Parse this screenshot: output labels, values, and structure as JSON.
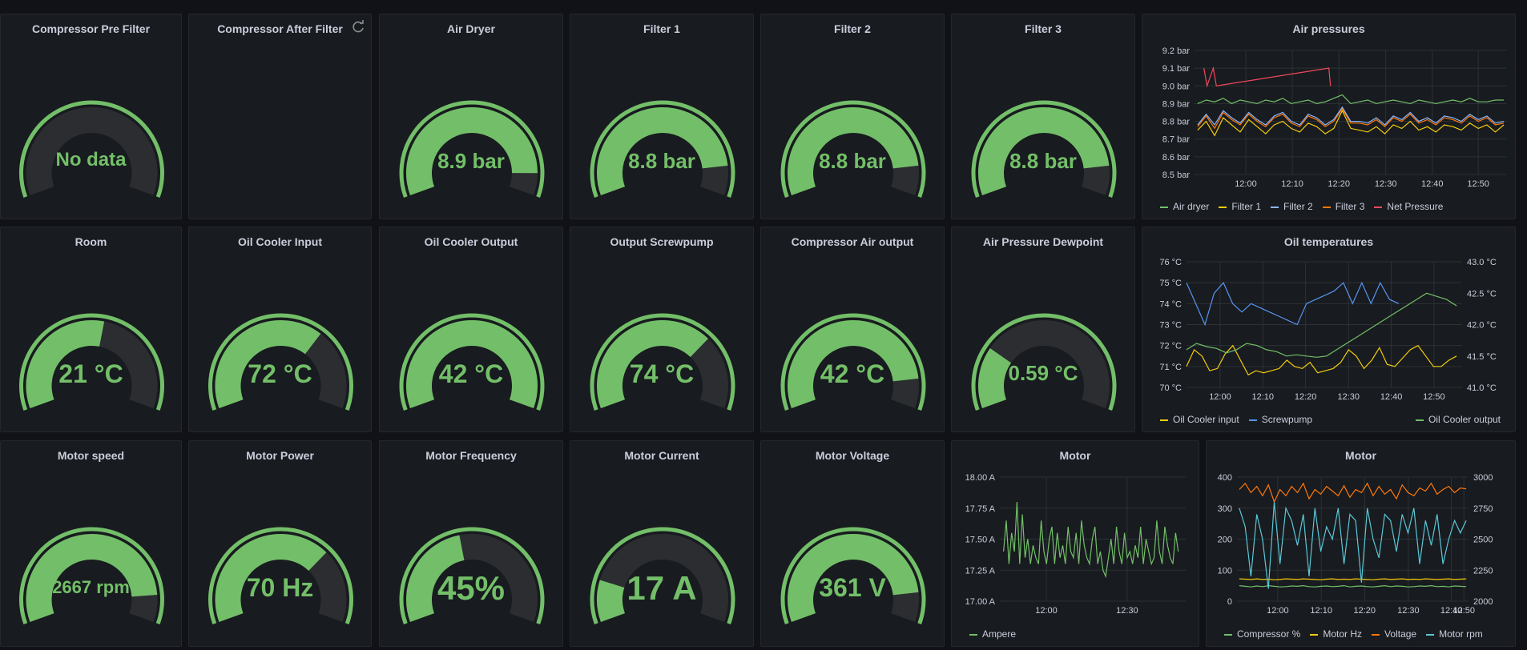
{
  "colors": {
    "accent": "#73bf69",
    "track": "#2b2d31",
    "grid": "#2c3235",
    "text": "#ccccdc",
    "bg": "#181b1f"
  },
  "gauges": [
    {
      "title": "Compressor Pre Filter",
      "display": "No data",
      "fraction": 0
    },
    {
      "title": "Compressor After Filter",
      "display": "",
      "fraction": null,
      "refresh_icon": "refresh-icon"
    },
    {
      "title": "Air Dryer",
      "display": "8.9 bar",
      "fraction": 0.91
    },
    {
      "title": "Filter 1",
      "display": "8.8 bar",
      "fraction": 0.88
    },
    {
      "title": "Filter 2",
      "display": "8.8 bar",
      "fraction": 0.88
    },
    {
      "title": "Filter 3",
      "display": "8.8 bar",
      "fraction": 0.88
    },
    {
      "title": "Room",
      "display": "21 °C",
      "fraction": 0.55
    },
    {
      "title": "Oil Cooler Input",
      "display": "72 °C",
      "fraction": 0.67
    },
    {
      "title": "Oil Cooler Output",
      "display": "42 °C",
      "fraction": 1.0
    },
    {
      "title": "Output Screwpump",
      "display": "74 °C",
      "fraction": 0.7
    },
    {
      "title": "Compressor Air output",
      "display": "42 °C",
      "fraction": 0.88
    },
    {
      "title": "Air Pressure Dewpoint",
      "display": "0.59 °C",
      "fraction": 0.25
    },
    {
      "title": "Motor speed",
      "display": "2667 rpm",
      "fraction": 0.89
    },
    {
      "title": "Motor Power",
      "display": "70 Hz",
      "fraction": 0.7
    },
    {
      "title": "Motor Frequency",
      "display": "45%",
      "fraction": 0.45
    },
    {
      "title": "Motor Current",
      "display": "17 A",
      "fraction": 0.17
    },
    {
      "title": "Motor Voltage",
      "display": "361 V",
      "fraction": 0.88
    }
  ],
  "charts": {
    "air": {
      "title": "Air pressures",
      "legend": [
        {
          "name": "Air dryer",
          "color": "#73bf69"
        },
        {
          "name": "Filter 1",
          "color": "#f2cc0c"
        },
        {
          "name": "Filter 2",
          "color": "#8ab8ff"
        },
        {
          "name": "Filter 3",
          "color": "#ff780a"
        },
        {
          "name": "Net Pressure",
          "color": "#f2495c"
        }
      ]
    },
    "oil": {
      "title": "Oil temperatures",
      "legend_left": [
        {
          "name": "Oil Cooler input",
          "color": "#f2cc0c"
        },
        {
          "name": "Screwpump",
          "color": "#5794f2"
        }
      ],
      "legend_right": [
        {
          "name": "Oil Cooler output",
          "color": "#73bf69"
        }
      ]
    },
    "motor1": {
      "title": "Motor",
      "legend": [
        {
          "name": "Ampere",
          "color": "#73bf69"
        }
      ]
    },
    "motor2": {
      "title": "Motor",
      "legend": [
        {
          "name": "Compressor %",
          "color": "#73bf69"
        },
        {
          "name": "Motor Hz",
          "color": "#f2cc0c"
        },
        {
          "name": "Voltage",
          "color": "#ff780a"
        },
        {
          "name": "Motor rpm",
          "color": "#5ac8d8"
        }
      ]
    }
  },
  "chart_data": [
    {
      "type": "line",
      "title": "Air pressures",
      "x_ticks": [
        "12:00",
        "12:10",
        "12:20",
        "12:30",
        "12:40",
        "12:50"
      ],
      "y_ticks": [
        "8.5 bar",
        "8.6 bar",
        "8.7 bar",
        "8.8 bar",
        "8.9 bar",
        "9.0 bar",
        "9.1 bar",
        "9.2 bar"
      ],
      "ylim": [
        8.5,
        9.2
      ],
      "grid": true,
      "legend_position": "bottom",
      "series": [
        {
          "name": "Air dryer",
          "color": "#73bf69",
          "values": [
            8.9,
            8.92,
            8.91,
            8.93,
            8.9,
            8.92,
            8.91,
            8.9,
            8.92,
            8.91,
            8.93,
            8.9,
            8.91,
            8.92,
            8.9,
            8.91,
            8.93,
            8.95,
            8.9,
            8.91,
            8.92,
            8.9,
            8.91,
            8.92,
            8.91,
            8.9,
            8.92,
            8.91,
            8.9,
            8.91,
            8.92,
            8.91,
            8.93,
            8.91,
            8.91,
            8.92,
            8.92
          ]
        },
        {
          "name": "Filter 1",
          "color": "#f2cc0c",
          "values": [
            8.75,
            8.8,
            8.72,
            8.82,
            8.78,
            8.74,
            8.81,
            8.77,
            8.73,
            8.78,
            8.8,
            8.76,
            8.74,
            8.79,
            8.77,
            8.73,
            8.76,
            8.86,
            8.76,
            8.75,
            8.74,
            8.77,
            8.73,
            8.78,
            8.76,
            8.8,
            8.75,
            8.77,
            8.74,
            8.78,
            8.77,
            8.75,
            8.79,
            8.76,
            8.78,
            8.74,
            8.78
          ]
        },
        {
          "name": "Filter 2",
          "color": "#8ab8ff",
          "values": [
            8.78,
            8.84,
            8.78,
            8.86,
            8.82,
            8.79,
            8.85,
            8.81,
            8.78,
            8.83,
            8.85,
            8.8,
            8.78,
            8.84,
            8.82,
            8.78,
            8.81,
            8.88,
            8.8,
            8.8,
            8.79,
            8.82,
            8.78,
            8.83,
            8.81,
            8.85,
            8.8,
            8.82,
            8.79,
            8.83,
            8.82,
            8.8,
            8.84,
            8.81,
            8.83,
            8.79,
            8.8
          ]
        },
        {
          "name": "Filter 3",
          "color": "#ff780a",
          "values": [
            8.77,
            8.83,
            8.76,
            8.85,
            8.81,
            8.78,
            8.84,
            8.8,
            8.77,
            8.82,
            8.84,
            8.79,
            8.77,
            8.83,
            8.81,
            8.77,
            8.8,
            8.87,
            8.79,
            8.79,
            8.78,
            8.81,
            8.77,
            8.82,
            8.8,
            8.84,
            8.79,
            8.81,
            8.78,
            8.82,
            8.81,
            8.79,
            8.83,
            8.8,
            8.82,
            8.78,
            8.79
          ]
        },
        {
          "name": "Net Pressure",
          "color": "#f2495c",
          "x": [
            "11:56",
            "11:57",
            "11:58",
            "11:59",
            "12:19",
            "12:19"
          ],
          "values": [
            9.1,
            9.0,
            9.1,
            9.0,
            9.1,
            9.0
          ]
        }
      ]
    },
    {
      "type": "line",
      "title": "Oil temperatures",
      "x_ticks": [
        "12:00",
        "12:10",
        "12:20",
        "12:30",
        "12:40",
        "12:50"
      ],
      "y_ticks_left": [
        "70 °C",
        "71 °C",
        "72 °C",
        "73 °C",
        "74 °C",
        "75 °C",
        "76 °C"
      ],
      "y_ticks_right": [
        "41.0 °C",
        "41.5 °C",
        "42.0 °C",
        "42.5 °C",
        "43.0 °C"
      ],
      "ylim_left": [
        70,
        76
      ],
      "ylim_right": [
        41.0,
        43.0
      ],
      "grid": true,
      "legend_position": "bottom",
      "series": [
        {
          "name": "Oil Cooler input",
          "color": "#f2cc0c",
          "axis": "left",
          "values": [
            71.0,
            71.8,
            71.5,
            70.8,
            70.9,
            71.6,
            72.0,
            71.3,
            70.6,
            70.8,
            70.7,
            70.8,
            70.9,
            71.3,
            71.0,
            70.9,
            71.2,
            70.7,
            70.8,
            70.9,
            71.2,
            71.8,
            71.5,
            70.9,
            71.3,
            71.9,
            71.1,
            71.0,
            71.4,
            71.8,
            72.0,
            71.5,
            71.0,
            71.0,
            71.3,
            71.5
          ]
        },
        {
          "name": "Screwpump",
          "color": "#5794f2",
          "axis": "left",
          "values": [
            75.0,
            74.0,
            73.0,
            74.5,
            75.0,
            74.0,
            73.6,
            74.0,
            73.8,
            73.6,
            73.4,
            73.2,
            73.0,
            74.0,
            74.2,
            74.4,
            74.6,
            75.0,
            74.0,
            75.0,
            74.0,
            75.0,
            74.2,
            74.0
          ]
        },
        {
          "name": "Oil Cooler output",
          "color": "#73bf69",
          "axis": "right",
          "values": [
            41.6,
            41.7,
            41.65,
            41.62,
            41.55,
            41.6,
            41.7,
            41.67,
            41.6,
            41.57,
            41.5,
            41.52,
            41.5,
            41.48,
            41.5,
            41.6,
            41.7,
            41.8,
            41.9,
            42.0,
            42.1,
            42.2,
            42.3,
            42.4,
            42.5,
            42.45,
            42.4,
            42.3
          ]
        }
      ]
    },
    {
      "type": "line",
      "title": "Motor",
      "x_ticks": [
        "12:00",
        "12:30"
      ],
      "y_ticks": [
        "17.00 A",
        "17.25 A",
        "17.50 A",
        "17.75 A",
        "18.00 A"
      ],
      "ylim": [
        17.0,
        18.0
      ],
      "grid": true,
      "legend_position": "bottom",
      "series": [
        {
          "name": "Ampere",
          "color": "#73bf69",
          "values": [
            17.4,
            17.65,
            17.3,
            17.55,
            17.4,
            17.8,
            17.3,
            17.7,
            17.35,
            17.5,
            17.3,
            17.45,
            17.35,
            17.3,
            17.65,
            17.4,
            17.3,
            17.5,
            17.6,
            17.3,
            17.55,
            17.35,
            17.45,
            17.3,
            17.6,
            17.4,
            17.35,
            17.55,
            17.3,
            17.65,
            17.45,
            17.35,
            17.3,
            17.5,
            17.6,
            17.3,
            17.4,
            17.25,
            17.2,
            17.35,
            17.5,
            17.3,
            17.6,
            17.4,
            17.3,
            17.55,
            17.35,
            17.4,
            17.3,
            17.45,
            17.35,
            17.6,
            17.3,
            17.5,
            17.4,
            17.3,
            17.35,
            17.65,
            17.4,
            17.3,
            17.6,
            17.45,
            17.35,
            17.3,
            17.55,
            17.4
          ]
        }
      ]
    },
    {
      "type": "line",
      "title": "Motor",
      "x_ticks": [
        "12:00",
        "12:10",
        "12:20",
        "12:30",
        "12:40",
        "12:50"
      ],
      "y_ticks_left": [
        "0",
        "100",
        "200",
        "300",
        "400"
      ],
      "y_ticks_right": [
        "2000",
        "2250",
        "2500",
        "2750",
        "3000"
      ],
      "ylim_left": [
        0,
        400
      ],
      "ylim_right": [
        2000,
        3000
      ],
      "grid": true,
      "legend_position": "bottom",
      "series": [
        {
          "name": "Compressor %",
          "color": "#73bf69",
          "axis": "left",
          "values": [
            50,
            48,
            46,
            49,
            47,
            50,
            48,
            46,
            47,
            49,
            48,
            50,
            47,
            46,
            48,
            49,
            47,
            48,
            50,
            46,
            48,
            49,
            47,
            46,
            48,
            50,
            47,
            49,
            48,
            46,
            47,
            49,
            48,
            50,
            47,
            48,
            46,
            49,
            48,
            47
          ]
        },
        {
          "name": "Motor Hz",
          "color": "#f2cc0c",
          "axis": "left",
          "values": [
            72,
            71,
            70,
            72,
            70,
            71,
            69,
            70,
            72,
            71,
            70,
            72,
            71,
            70,
            69,
            71,
            72,
            70,
            71,
            70,
            72,
            71,
            70,
            69,
            71,
            72,
            70,
            71,
            72,
            70,
            71,
            70,
            72,
            71,
            70,
            71,
            72,
            70,
            71,
            72
          ]
        },
        {
          "name": "Voltage",
          "color": "#ff780a",
          "axis": "left",
          "values": [
            360,
            380,
            350,
            370,
            340,
            375,
            320,
            360,
            340,
            370,
            350,
            380,
            330,
            360,
            345,
            370,
            355,
            340,
            372,
            335,
            360,
            350,
            380,
            340,
            370,
            345,
            360,
            330,
            375,
            350,
            340,
            365,
            355,
            380,
            345,
            360,
            370,
            350,
            365,
            362
          ]
        },
        {
          "name": "Motor rpm",
          "color": "#5ac8d8",
          "axis": "right",
          "values": [
            2750,
            2600,
            2200,
            2700,
            2500,
            2100,
            2800,
            2300,
            2750,
            2650,
            2450,
            2700,
            2200,
            2750,
            2400,
            2600,
            2500,
            2750,
            2300,
            2700,
            2650,
            2150,
            2750,
            2500,
            2350,
            2700,
            2650,
            2400,
            2700,
            2550,
            2750,
            2300,
            2650,
            2450,
            2700,
            2300,
            2500,
            2650,
            2550,
            2650
          ]
        }
      ]
    }
  ]
}
